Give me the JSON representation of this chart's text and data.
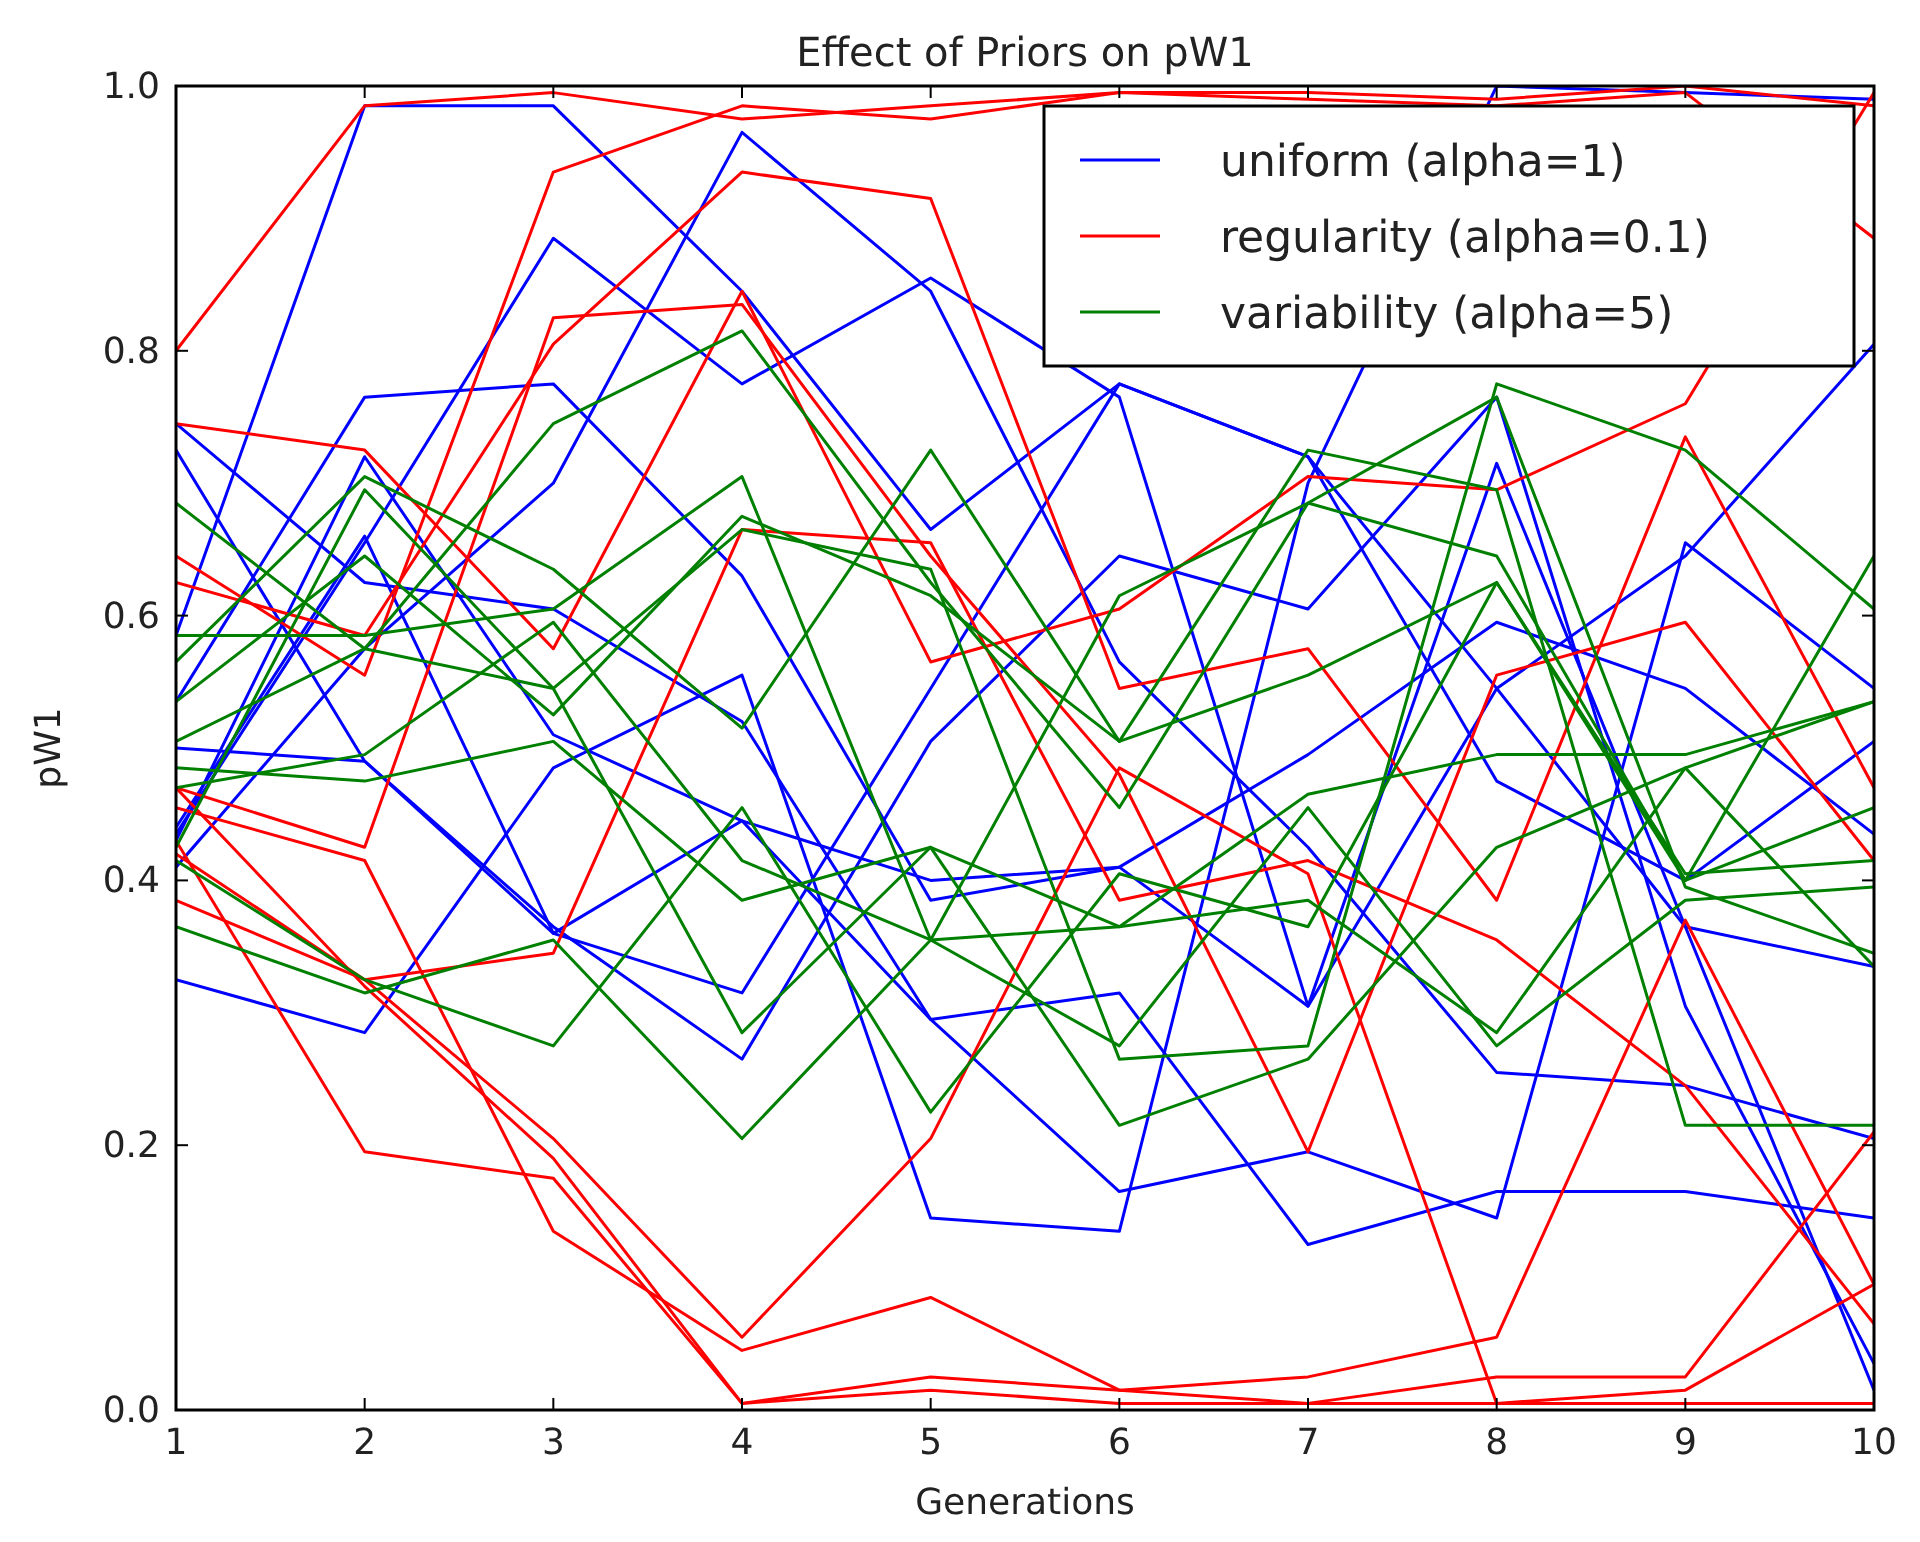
{
  "chart_data": {
    "type": "line",
    "title": "Effect of Priors on pW1",
    "xlabel": "Generations",
    "ylabel": "pW1",
    "x": [
      1,
      2,
      3,
      4,
      5,
      6,
      7,
      8,
      9,
      10
    ],
    "xlim": [
      1,
      10
    ],
    "xticks": [
      1,
      2,
      3,
      4,
      5,
      6,
      7,
      8,
      9,
      10
    ],
    "ylim": [
      0,
      1
    ],
    "yticks": [
      {
        "value": 0,
        "label": "0.0"
      },
      {
        "value": 0.2,
        "label": "0.2"
      },
      {
        "value": 0.4,
        "label": "0.4"
      },
      {
        "value": 0.6,
        "label": "0.6"
      },
      {
        "value": 0.8,
        "label": "0.8"
      },
      {
        "value": 1,
        "label": "1.0"
      }
    ],
    "grid": false,
    "legend": "top right",
    "marker": "none",
    "line_style": "solid",
    "series": [
      {
        "name": "uniform (alpha=1)",
        "color": "#0000ff",
        "values": [
          0.585,
          0.985,
          0.985,
          0.845,
          0.665,
          0.775,
          0.72,
          0.545,
          0.645,
          0.805
        ]
      },
      {
        "color": "#0000ff",
        "values": [
          0.435,
          0.655,
          0.885,
          0.775,
          0.855,
          0.765,
          0.305,
          0.715,
          0.365,
          0.335
        ]
      },
      {
        "color": "#0000ff",
        "values": [
          0.745,
          0.625,
          0.605,
          0.52,
          0.295,
          0.315,
          0.125,
          0.165,
          0.165,
          0.145
        ]
      },
      {
        "color": "#0000ff",
        "values": [
          0.725,
          0.49,
          0.365,
          0.265,
          0.505,
          0.645,
          0.605,
          0.765,
          0.305,
          0.035
        ]
      },
      {
        "color": "#0000ff",
        "values": [
          0.535,
          0.765,
          0.775,
          0.63,
          0.385,
          0.41,
          0.495,
          0.595,
          0.545,
          0.435
        ]
      },
      {
        "color": "#0000ff",
        "values": [
          0.41,
          0.575,
          0.7,
          0.965,
          0.845,
          0.565,
          0.425,
          0.255,
          0.245,
          0.205
        ]
      },
      {
        "color": "#0000ff",
        "values": [
          0.325,
          0.285,
          0.485,
          0.555,
          0.145,
          0.135,
          0.7,
          1.0,
          0.995,
          0.99
        ]
      },
      {
        "color": "#0000ff",
        "values": [
          0.43,
          0.72,
          0.51,
          0.445,
          0.295,
          0.165,
          0.195,
          0.145,
          0.655,
          0.545
        ]
      },
      {
        "color": "#0000ff",
        "values": [
          0.44,
          0.66,
          0.36,
          0.315,
          0.545,
          0.775,
          0.72,
          0.475,
          0.4,
          0.505
        ]
      },
      {
        "color": "#0000ff",
        "values": [
          0.5,
          0.49,
          0.36,
          0.445,
          0.4,
          0.41,
          0.305,
          0.545,
          0.365,
          0.015
        ]
      },
      {
        "name": "regularity (alpha=0.1)",
        "color": "#ff0000",
        "values": [
          0.8,
          0.985,
          0.995,
          0.975,
          0.985,
          0.995,
          0.995,
          0.99,
          1.0,
          0.985
        ]
      },
      {
        "color": "#ff0000",
        "values": [
          0.745,
          0.725,
          0.575,
          0.845,
          0.565,
          0.605,
          0.705,
          0.695,
          0.76,
          0.995
        ]
      },
      {
        "color": "#ff0000",
        "values": [
          0.645,
          0.555,
          0.935,
          0.985,
          0.975,
          0.995,
          0.99,
          0.985,
          0.995,
          0.885
        ]
      },
      {
        "color": "#ff0000",
        "values": [
          0.625,
          0.585,
          0.805,
          0.935,
          0.915,
          0.545,
          0.575,
          0.385,
          0.735,
          0.47
        ]
      },
      {
        "color": "#ff0000",
        "values": [
          0.47,
          0.425,
          0.825,
          0.835,
          0.645,
          0.48,
          0.195,
          0.555,
          0.595,
          0.415
        ]
      },
      {
        "color": "#ff0000",
        "values": [
          0.455,
          0.415,
          0.135,
          0.045,
          0.085,
          0.015,
          0.025,
          0.055,
          0.37,
          0.095
        ]
      },
      {
        "color": "#ff0000",
        "values": [
          0.43,
          0.195,
          0.175,
          0.005,
          0.025,
          0.015,
          0.005,
          0.025,
          0.025,
          0.21
        ]
      },
      {
        "color": "#ff0000",
        "values": [
          0.42,
          0.325,
          0.345,
          0.665,
          0.655,
          0.385,
          0.415,
          0.355,
          0.245,
          0.065
        ]
      },
      {
        "color": "#ff0000",
        "values": [
          0.385,
          0.325,
          0.205,
          0.055,
          0.205,
          0.485,
          0.405,
          0.005,
          0.015,
          0.095
        ]
      },
      {
        "color": "#ff0000",
        "values": [
          0.47,
          0.32,
          0.19,
          0.005,
          0.015,
          0.005,
          0.005,
          0.005,
          0.005,
          0.005
        ]
      },
      {
        "name": "variability (alpha=5)",
        "color": "#008000",
        "values": [
          0.685,
          0.575,
          0.745,
          0.815,
          0.625,
          0.455,
          0.685,
          0.645,
          0.4,
          0.645
        ]
      },
      {
        "color": "#008000",
        "values": [
          0.585,
          0.585,
          0.605,
          0.705,
          0.355,
          0.365,
          0.385,
          0.285,
          0.485,
          0.535
        ]
      },
      {
        "color": "#008000",
        "values": [
          0.565,
          0.705,
          0.635,
          0.515,
          0.725,
          0.505,
          0.725,
          0.695,
          0.215,
          0.215
        ]
      },
      {
        "color": "#008000",
        "values": [
          0.505,
          0.575,
          0.545,
          0.665,
          0.635,
          0.265,
          0.275,
          0.775,
          0.725,
          0.605
        ]
      },
      {
        "color": "#008000",
        "values": [
          0.485,
          0.475,
          0.505,
          0.385,
          0.425,
          0.365,
          0.465,
          0.495,
          0.495,
          0.535
        ]
      },
      {
        "color": "#008000",
        "values": [
          0.415,
          0.325,
          0.275,
          0.455,
          0.225,
          0.405,
          0.365,
          0.625,
          0.405,
          0.415
        ]
      },
      {
        "color": "#008000",
        "values": [
          0.365,
          0.315,
          0.355,
          0.205,
          0.355,
          0.275,
          0.455,
          0.275,
          0.385,
          0.395
        ]
      },
      {
        "color": "#008000",
        "values": [
          0.425,
          0.695,
          0.545,
          0.285,
          0.425,
          0.215,
          0.265,
          0.425,
          0.485,
          0.335
        ]
      },
      {
        "color": "#008000",
        "values": [
          0.535,
          0.645,
          0.525,
          0.675,
          0.615,
          0.505,
          0.555,
          0.625,
          0.4,
          0.455
        ]
      },
      {
        "color": "#008000",
        "values": [
          0.47,
          0.495,
          0.595,
          0.415,
          0.355,
          0.615,
          0.685,
          0.765,
          0.395,
          0.345
        ]
      }
    ]
  }
}
